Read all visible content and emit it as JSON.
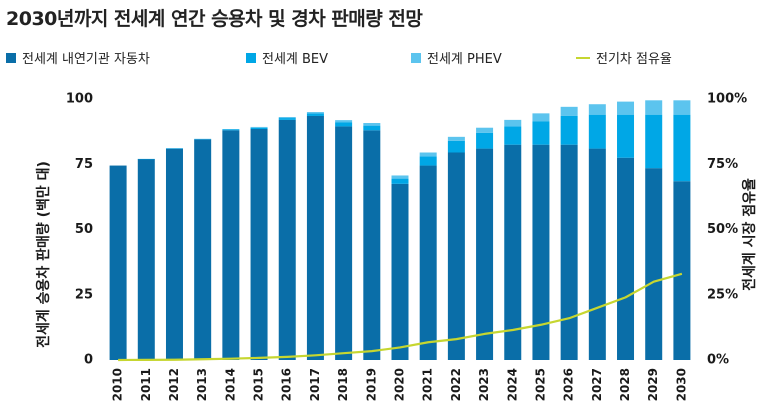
{
  "chart_data": {
    "type": "bar",
    "title": "2030년까지 전세계 연간 승용차 및 경차 판매량 전망",
    "ylabel": "전세계 승용차 판매량 (백만 대)",
    "ylabel_right": "전세계 시장 점유율",
    "ylim": [
      0,
      100
    ],
    "yticks": [
      "0",
      "25",
      "50",
      "75",
      "100"
    ],
    "y2ticks": [
      "0%",
      "25%",
      "50%",
      "75%",
      "100%"
    ],
    "categories": [
      "2010",
      "2011",
      "2012",
      "2013",
      "2014",
      "2015",
      "2016",
      "2017",
      "2018",
      "2019",
      "2020",
      "2021",
      "2022",
      "2023",
      "2024",
      "2025",
      "2026",
      "2027",
      "2028",
      "2029",
      "2030"
    ],
    "series": [
      {
        "name": "전세계 내연기관 자동차",
        "color": "#0a6ea8",
        "values": [
          74.5,
          77,
          81,
          84.5,
          88,
          88.5,
          92,
          93.5,
          89.5,
          88,
          67.5,
          74.5,
          79.5,
          81,
          82.5,
          82.5,
          82.5,
          81,
          77.5,
          73.5,
          68.5
        ]
      },
      {
        "name": "전세계 BEV",
        "color": "#00a7e6",
        "values": [
          0,
          0.05,
          0.1,
          0.15,
          0.3,
          0.5,
          0.7,
          1.0,
          1.5,
          1.8,
          2.0,
          3.5,
          4.5,
          6.0,
          7.0,
          9.0,
          11.0,
          13.0,
          16.5,
          20.5,
          25.5
        ]
      },
      {
        "name": "전세계 PHEV",
        "color": "#5cc4ee",
        "values": [
          0,
          0,
          0.05,
          0.1,
          0.2,
          0.3,
          0.4,
          0.5,
          0.9,
          1.0,
          1.2,
          1.5,
          1.5,
          2.0,
          2.5,
          3.0,
          3.5,
          4.0,
          5.0,
          5.5,
          5.5
        ]
      },
      {
        "name": "전기차 점유율",
        "color": "#c6d630",
        "type": "line",
        "values": [
          0.0,
          0.05,
          0.1,
          0.3,
          0.5,
          0.8,
          1.2,
          1.8,
          2.6,
          3.4,
          4.8,
          6.8,
          8.0,
          10.0,
          11.5,
          13.5,
          16.0,
          20.0,
          24.0,
          30.0,
          33.0
        ]
      }
    ]
  }
}
